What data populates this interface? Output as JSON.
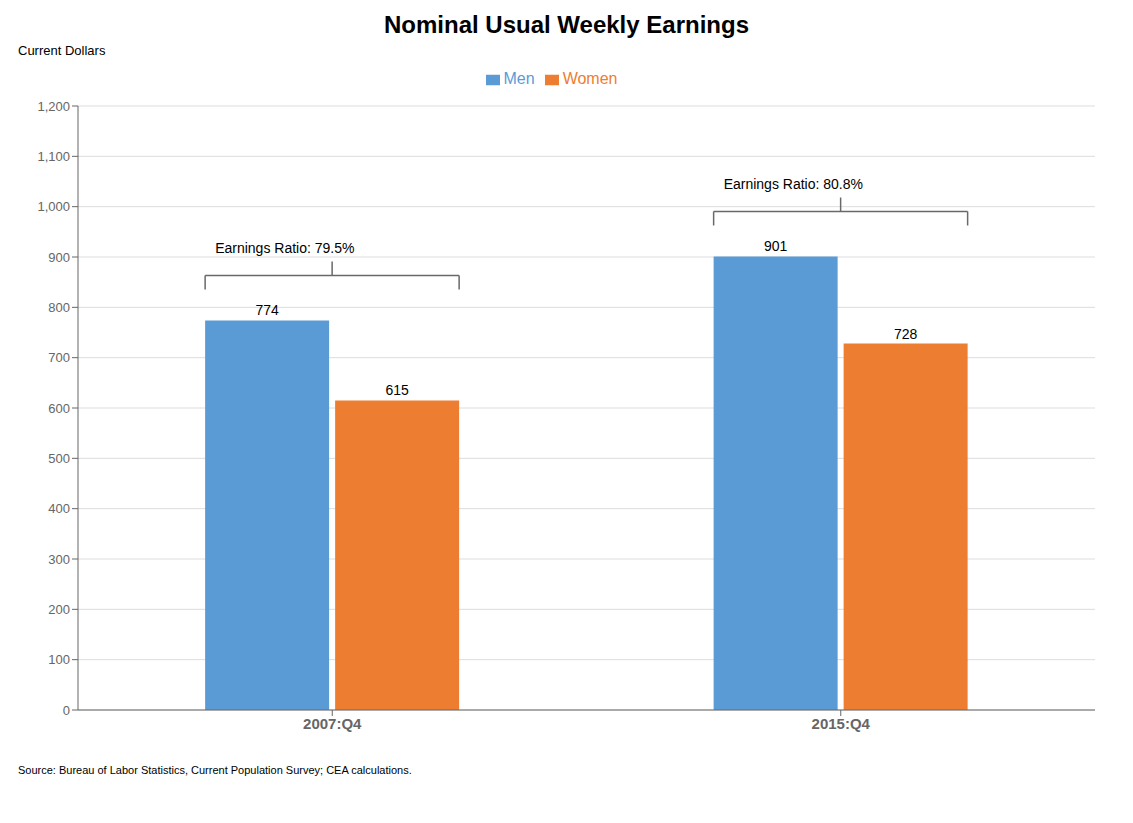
{
  "chart_data": {
    "type": "bar",
    "title": "Nominal Usual Weekly Earnings",
    "ylabel": "Current Dollars",
    "source": "Source: Bureau of Labor Statistics, Current Population Survey; CEA calculations.",
    "categories": [
      "2007:Q4",
      "2015:Q4"
    ],
    "series": [
      {
        "name": "Men",
        "color": "#5B9BD5",
        "values": [
          774,
          901
        ]
      },
      {
        "name": "Women",
        "color": "#ED7D31",
        "values": [
          615,
          728
        ]
      }
    ],
    "ylim": [
      0,
      1200
    ],
    "yticks": [
      0,
      100,
      200,
      300,
      400,
      500,
      600,
      700,
      800,
      900,
      {
        "value": 1000,
        "label": "1,000"
      },
      {
        "value": 1100,
        "label": "1,100"
      },
      {
        "value": 1200,
        "label": "1,200"
      }
    ],
    "grid": true,
    "legend": "top",
    "data_labels": true,
    "annotations": [
      {
        "category": "2007:Q4",
        "text": "Earnings Ratio: 79.5%"
      },
      {
        "category": "2015:Q4",
        "text": "Earnings Ratio: 80.8%"
      }
    ]
  }
}
